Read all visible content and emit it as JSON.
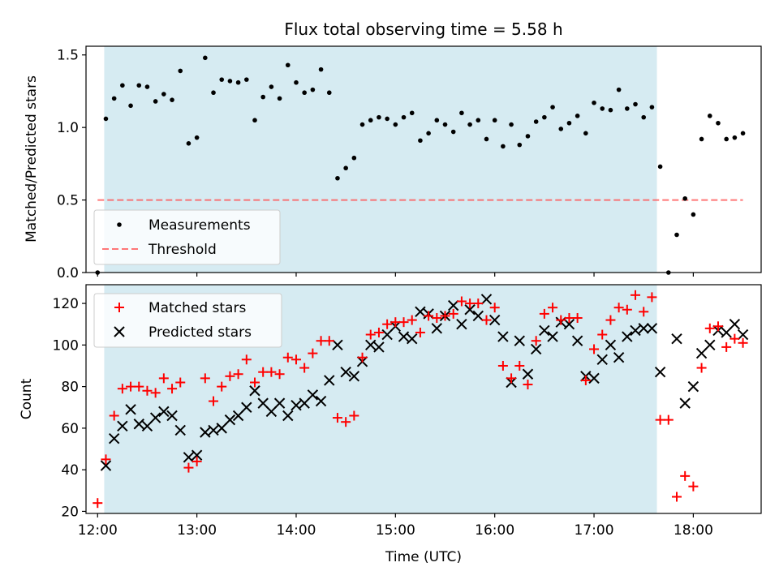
{
  "chart_data": [
    {
      "type": "scatter",
      "title": "Flux total observing time = 5.58 h",
      "ylabel": "Matched/Predicted stars",
      "xlabel": "",
      "ylim": [
        0,
        1.56
      ],
      "yticks": [
        "0.0",
        "0.5",
        "1.0",
        "1.5"
      ],
      "grid": false,
      "legend_position": "lower-left",
      "shaded_interval": [
        "12:04",
        "17:38"
      ],
      "shaded_color": "#add8e6",
      "threshold": {
        "name": "Threshold",
        "value": 0.5,
        "x_start": "12:00",
        "x_end": "18:30",
        "color": "#ff5555"
      },
      "series": [
        {
          "name": "Measurements",
          "color": "#000000",
          "x": [
            "12:00",
            "12:05",
            "12:10",
            "12:15",
            "12:20",
            "12:25",
            "12:30",
            "12:35",
            "12:40",
            "12:45",
            "12:50",
            "12:55",
            "13:00",
            "13:05",
            "13:10",
            "13:15",
            "13:20",
            "13:25",
            "13:30",
            "13:35",
            "13:40",
            "13:45",
            "13:50",
            "13:55",
            "14:00",
            "14:05",
            "14:10",
            "14:15",
            "14:20",
            "14:25",
            "14:30",
            "14:35",
            "14:40",
            "14:45",
            "14:50",
            "14:55",
            "15:00",
            "15:05",
            "15:10",
            "15:15",
            "15:20",
            "15:25",
            "15:30",
            "15:35",
            "15:40",
            "15:45",
            "15:50",
            "15:55",
            "16:00",
            "16:05",
            "16:10",
            "16:15",
            "16:20",
            "16:25",
            "16:30",
            "16:35",
            "16:40",
            "16:45",
            "16:50",
            "16:55",
            "17:00",
            "17:05",
            "17:10",
            "17:15",
            "17:20",
            "17:25",
            "17:30",
            "17:35",
            "17:40",
            "17:45",
            "17:50",
            "17:55",
            "18:00",
            "18:05",
            "18:10",
            "18:15",
            "18:20",
            "18:25",
            "18:30"
          ],
          "y": [
            0.0,
            1.06,
            1.2,
            1.29,
            1.15,
            1.29,
            1.28,
            1.18,
            1.23,
            1.19,
            1.39,
            0.89,
            0.93,
            1.48,
            1.24,
            1.33,
            1.32,
            1.31,
            1.33,
            1.05,
            1.21,
            1.28,
            1.2,
            1.43,
            1.31,
            1.24,
            1.26,
            1.4,
            1.24,
            0.65,
            0.72,
            0.79,
            1.02,
            1.05,
            1.07,
            1.06,
            1.02,
            1.07,
            1.1,
            0.91,
            0.96,
            1.05,
            1.02,
            0.97,
            1.1,
            1.02,
            1.05,
            0.92,
            1.05,
            0.87,
            1.02,
            0.88,
            0.94,
            1.04,
            1.07,
            1.14,
            0.99,
            1.03,
            1.08,
            0.96,
            1.17,
            1.13,
            1.12,
            1.26,
            1.13,
            1.16,
            1.07,
            1.14,
            0.73,
            0.0,
            0.26,
            0.51,
            0.4,
            0.92,
            1.08,
            1.03,
            0.92,
            0.93,
            0.96
          ]
        }
      ]
    },
    {
      "type": "scatter",
      "title": "",
      "ylabel": "Count",
      "xlabel": "Time (UTC)",
      "ylim": [
        19,
        129
      ],
      "yticks": [
        "20",
        "40",
        "60",
        "80",
        "100",
        "120"
      ],
      "xlim": [
        "11:53",
        "18:41"
      ],
      "xticks": [
        "12:00",
        "13:00",
        "14:00",
        "15:00",
        "16:00",
        "17:00",
        "18:00"
      ],
      "grid": false,
      "legend_position": "upper-left",
      "shaded_interval": [
        "12:04",
        "17:38"
      ],
      "shaded_color": "#add8e6",
      "series": [
        {
          "name": "Matched stars",
          "marker": "plus",
          "color": "#ff0000",
          "x": [
            "12:00",
            "12:05",
            "12:10",
            "12:15",
            "12:20",
            "12:25",
            "12:30",
            "12:35",
            "12:40",
            "12:45",
            "12:50",
            "12:55",
            "13:00",
            "13:05",
            "13:10",
            "13:15",
            "13:20",
            "13:25",
            "13:30",
            "13:35",
            "13:40",
            "13:45",
            "13:50",
            "13:55",
            "14:00",
            "14:05",
            "14:10",
            "14:15",
            "14:20",
            "14:25",
            "14:30",
            "14:35",
            "14:40",
            "14:45",
            "14:50",
            "14:55",
            "15:00",
            "15:05",
            "15:10",
            "15:15",
            "15:20",
            "15:25",
            "15:30",
            "15:35",
            "15:40",
            "15:45",
            "15:50",
            "15:55",
            "16:00",
            "16:05",
            "16:10",
            "16:15",
            "16:20",
            "16:25",
            "16:30",
            "16:35",
            "16:40",
            "16:45",
            "16:50",
            "16:55",
            "17:00",
            "17:05",
            "17:10",
            "17:15",
            "17:20",
            "17:25",
            "17:30",
            "17:35",
            "17:40",
            "17:45",
            "17:50",
            "17:55",
            "18:00",
            "18:05",
            "18:10",
            "18:15",
            "18:20",
            "18:25",
            "18:30"
          ],
          "y": [
            24,
            45,
            66,
            79,
            80,
            80,
            78,
            77,
            84,
            79,
            82,
            41,
            44,
            84,
            73,
            80,
            85,
            86,
            93,
            82,
            87,
            87,
            86,
            94,
            93,
            89,
            96,
            102,
            102,
            65,
            63,
            66,
            94,
            105,
            106,
            110,
            111,
            111,
            112,
            106,
            114,
            113,
            114,
            115,
            121,
            120,
            120,
            112,
            118,
            90,
            84,
            90,
            81,
            102,
            115,
            118,
            112,
            113,
            113,
            83,
            98,
            105,
            112,
            118,
            117,
            124,
            116,
            123,
            64,
            64,
            27,
            37,
            32,
            89,
            108,
            109,
            99,
            103,
            101
          ]
        },
        {
          "name": "Predicted stars",
          "marker": "x",
          "color": "#000000",
          "x": [
            "12:05",
            "12:10",
            "12:15",
            "12:20",
            "12:25",
            "12:30",
            "12:35",
            "12:40",
            "12:45",
            "12:50",
            "12:55",
            "13:00",
            "13:05",
            "13:10",
            "13:15",
            "13:20",
            "13:25",
            "13:30",
            "13:35",
            "13:40",
            "13:45",
            "13:50",
            "13:55",
            "14:00",
            "14:05",
            "14:10",
            "14:15",
            "14:20",
            "14:25",
            "14:30",
            "14:35",
            "14:40",
            "14:45",
            "14:50",
            "14:55",
            "15:00",
            "15:05",
            "15:10",
            "15:15",
            "15:20",
            "15:25",
            "15:30",
            "15:35",
            "15:40",
            "15:45",
            "15:50",
            "15:55",
            "16:00",
            "16:05",
            "16:10",
            "16:15",
            "16:20",
            "16:25",
            "16:30",
            "16:35",
            "16:40",
            "16:45",
            "16:50",
            "16:55",
            "17:00",
            "17:05",
            "17:10",
            "17:15",
            "17:20",
            "17:25",
            "17:30",
            "17:35",
            "17:40",
            "17:50",
            "17:55",
            "18:00",
            "18:05",
            "18:10",
            "18:15",
            "18:20",
            "18:25",
            "18:30"
          ],
          "y": [
            42,
            55,
            61,
            69,
            62,
            61,
            65,
            68,
            66,
            59,
            46,
            47,
            58,
            59,
            60,
            64,
            66,
            70,
            78,
            72,
            68,
            72,
            66,
            71,
            72,
            76,
            73,
            83,
            100,
            87,
            85,
            92,
            100,
            99,
            105,
            109,
            104,
            103,
            116,
            115,
            108,
            114,
            119,
            110,
            117,
            114,
            122,
            112,
            104,
            82,
            102,
            86,
            98,
            107,
            104,
            111,
            110,
            102,
            85,
            84,
            93,
            100,
            94,
            104,
            107,
            108,
            108,
            87,
            103,
            72,
            80,
            96,
            100,
            107,
            106,
            110,
            105
          ]
        }
      ]
    }
  ]
}
